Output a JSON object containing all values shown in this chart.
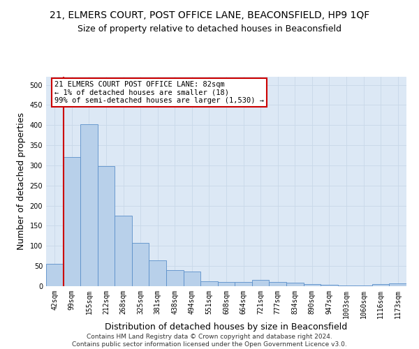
{
  "title": "21, ELMERS COURT, POST OFFICE LANE, BEACONSFIELD, HP9 1QF",
  "subtitle": "Size of property relative to detached houses in Beaconsfield",
  "xlabel": "Distribution of detached houses by size in Beaconsfield",
  "ylabel": "Number of detached properties",
  "footer_line1": "Contains HM Land Registry data © Crown copyright and database right 2024.",
  "footer_line2": "Contains public sector information licensed under the Open Government Licence v3.0.",
  "categories": [
    "42sqm",
    "99sqm",
    "155sqm",
    "212sqm",
    "268sqm",
    "325sqm",
    "381sqm",
    "438sqm",
    "494sqm",
    "551sqm",
    "608sqm",
    "664sqm",
    "721sqm",
    "777sqm",
    "834sqm",
    "890sqm",
    "947sqm",
    "1003sqm",
    "1060sqm",
    "1116sqm",
    "1173sqm"
  ],
  "values": [
    55,
    320,
    402,
    298,
    175,
    107,
    65,
    40,
    37,
    13,
    11,
    11,
    16,
    10,
    8,
    5,
    3,
    1,
    1,
    6,
    7
  ],
  "bar_color": "#b8d0ea",
  "bar_edge_color": "#5b8fc9",
  "annotation_line1": "21 ELMERS COURT POST OFFICE LANE: 82sqm",
  "annotation_line2": "← 1% of detached houses are smaller (18)",
  "annotation_line3": "99% of semi-detached houses are larger (1,530) →",
  "annotation_box_color": "#ffffff",
  "annotation_box_edge_color": "#cc0000",
  "vline_color": "#cc0000",
  "vline_x": 0.5,
  "ylim": [
    0,
    520
  ],
  "yticks": [
    0,
    50,
    100,
    150,
    200,
    250,
    300,
    350,
    400,
    450,
    500
  ],
  "grid_color": "#c8d8e8",
  "background_color": "#dce8f5",
  "title_fontsize": 10,
  "subtitle_fontsize": 9,
  "ylabel_fontsize": 9,
  "xlabel_fontsize": 9,
  "tick_fontsize": 7,
  "annotation_fontsize": 7.5,
  "footer_fontsize": 6.5
}
